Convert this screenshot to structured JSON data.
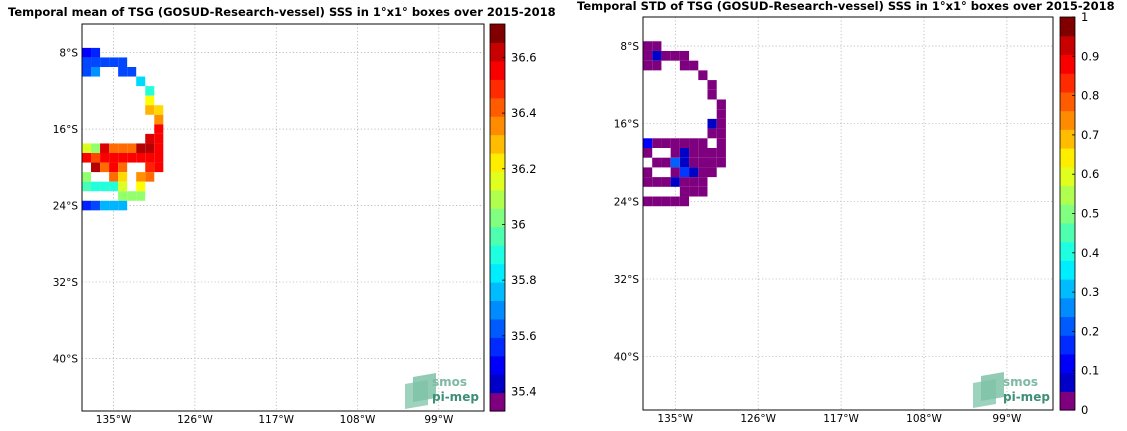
{
  "chart_data": [
    {
      "type": "heatmap",
      "title": "Temporal mean of TSG (GOSUD-Research-vessel) SSS in 1°x1° boxes over 2015-2018",
      "xlabel": "",
      "ylabel": "",
      "xlim": [
        -138.5,
        -94
      ],
      "ylim": [
        -45.5,
        -5
      ],
      "x_ticks": [
        -135,
        -126,
        -117,
        -108,
        -99
      ],
      "x_tick_labels": [
        "135°W",
        "126°W",
        "117°W",
        "108°W",
        "99°W"
      ],
      "y_ticks": [
        -8,
        -16,
        -24,
        -32,
        -40
      ],
      "y_tick_labels": [
        "8°S",
        "16°S",
        "24°S",
        "32°S",
        "40°S"
      ],
      "grid": true,
      "colorbar": {
        "range": [
          35.33,
          36.72
        ],
        "ticks": [
          35.4,
          35.6,
          35.8,
          36,
          36.2,
          36.4,
          36.6
        ],
        "tick_labels": [
          "35.4",
          "35.6",
          "35.8",
          "36",
          "36.2",
          "36.4",
          "36.6"
        ]
      },
      "cells": [
        {
          "lon": -138,
          "lat": -8,
          "value": 35.5
        },
        {
          "lon": -137,
          "lat": -8,
          "value": 35.55
        },
        {
          "lon": -138,
          "lat": -9,
          "value": 35.6
        },
        {
          "lon": -137,
          "lat": -9,
          "value": 35.6
        },
        {
          "lon": -136,
          "lat": -9,
          "value": 35.6
        },
        {
          "lon": -135,
          "lat": -9,
          "value": 35.6
        },
        {
          "lon": -134,
          "lat": -9,
          "value": 35.6
        },
        {
          "lon": -138,
          "lat": -10,
          "value": 35.6
        },
        {
          "lon": -137,
          "lat": -10,
          "value": 35.7
        },
        {
          "lon": -134,
          "lat": -10,
          "value": 35.6
        },
        {
          "lon": -133,
          "lat": -10,
          "value": 35.6
        },
        {
          "lon": -132,
          "lat": -11,
          "value": 35.8
        },
        {
          "lon": -131,
          "lat": -12,
          "value": 35.9
        },
        {
          "lon": -131,
          "lat": -13,
          "value": 36.2
        },
        {
          "lon": -131,
          "lat": -14,
          "value": 36.3
        },
        {
          "lon": -130,
          "lat": -14,
          "value": 36.25
        },
        {
          "lon": -130,
          "lat": -15,
          "value": 36.35
        },
        {
          "lon": -130,
          "lat": -16,
          "value": 36.55
        },
        {
          "lon": -131,
          "lat": -17,
          "value": 36.6
        },
        {
          "lon": -130,
          "lat": -17,
          "value": 36.55
        },
        {
          "lon": -138,
          "lat": -18,
          "value": 36.15
        },
        {
          "lon": -137,
          "lat": -18,
          "value": 36.05
        },
        {
          "lon": -136,
          "lat": -18,
          "value": 36.6
        },
        {
          "lon": -135,
          "lat": -18,
          "value": 36.4
        },
        {
          "lon": -134,
          "lat": -18,
          "value": 36.4
        },
        {
          "lon": -133,
          "lat": -18,
          "value": 36.4
        },
        {
          "lon": -132,
          "lat": -18,
          "value": 36.65
        },
        {
          "lon": -131,
          "lat": -18,
          "value": 36.65
        },
        {
          "lon": -130,
          "lat": -18,
          "value": 36.55
        },
        {
          "lon": -138,
          "lat": -19,
          "value": 36.55
        },
        {
          "lon": -137,
          "lat": -19,
          "value": 36.45
        },
        {
          "lon": -136,
          "lat": -19,
          "value": 36.55
        },
        {
          "lon": -135,
          "lat": -19,
          "value": 36.55
        },
        {
          "lon": -134,
          "lat": -19,
          "value": 36.55
        },
        {
          "lon": -133,
          "lat": -19,
          "value": 36.55
        },
        {
          "lon": -132,
          "lat": -19,
          "value": 36.55
        },
        {
          "lon": -131,
          "lat": -19,
          "value": 36.55
        },
        {
          "lon": -130,
          "lat": -19,
          "value": 36.55
        },
        {
          "lon": -137,
          "lat": -20,
          "value": 36.65
        },
        {
          "lon": -136,
          "lat": -20,
          "value": 36.4
        },
        {
          "lon": -135,
          "lat": -20,
          "value": 36.55
        },
        {
          "lon": -134,
          "lat": -20,
          "value": 36.4
        },
        {
          "lon": -131,
          "lat": -20,
          "value": 36.5
        },
        {
          "lon": -130,
          "lat": -20,
          "value": 36.55
        },
        {
          "lon": -138,
          "lat": -21,
          "value": 36.05
        },
        {
          "lon": -135,
          "lat": -21,
          "value": 36.4
        },
        {
          "lon": -134,
          "lat": -21,
          "value": 36.25
        },
        {
          "lon": -132,
          "lat": -21,
          "value": 36.35
        },
        {
          "lon": -131,
          "lat": -21,
          "value": 36.4
        },
        {
          "lon": -138,
          "lat": -22,
          "value": 35.95
        },
        {
          "lon": -137,
          "lat": -22,
          "value": 35.9
        },
        {
          "lon": -136,
          "lat": -22,
          "value": 35.9
        },
        {
          "lon": -135,
          "lat": -22,
          "value": 35.9
        },
        {
          "lon": -134,
          "lat": -22,
          "value": 36.15
        },
        {
          "lon": -132,
          "lat": -22,
          "value": 36.2
        },
        {
          "lon": -134,
          "lat": -23,
          "value": 36.05
        },
        {
          "lon": -133,
          "lat": -23,
          "value": 36.05
        },
        {
          "lon": -132,
          "lat": -23,
          "value": 36.05
        },
        {
          "lon": -138,
          "lat": -24,
          "value": 35.55
        },
        {
          "lon": -137,
          "lat": -24,
          "value": 35.6
        },
        {
          "lon": -136,
          "lat": -24,
          "value": 35.75
        },
        {
          "lon": -135,
          "lat": -24,
          "value": 35.75
        },
        {
          "lon": -134,
          "lat": -24,
          "value": 35.75
        }
      ]
    },
    {
      "type": "heatmap",
      "title": "Temporal STD of TSG (GOSUD-Research-vessel) SSS in 1°x1° boxes over 2015-2018",
      "xlabel": "",
      "ylabel": "",
      "xlim": [
        -138.5,
        -94
      ],
      "ylim": [
        -45.5,
        -5
      ],
      "x_ticks": [
        -135,
        -126,
        -117,
        -108,
        -99
      ],
      "x_tick_labels": [
        "135°W",
        "126°W",
        "117°W",
        "108°W",
        "99°W"
      ],
      "y_ticks": [
        -8,
        -16,
        -24,
        -32,
        -40
      ],
      "y_tick_labels": [
        "8°S",
        "16°S",
        "24°S",
        "32°S",
        "40°S"
      ],
      "grid": true,
      "colorbar": {
        "range": [
          0,
          1
        ],
        "ticks": [
          0,
          0.1,
          0.2,
          0.3,
          0.4,
          0.5,
          0.6,
          0.7,
          0.8,
          0.9,
          1
        ],
        "tick_labels": [
          "0",
          "0.1",
          "0.2",
          "0.3",
          "0.4",
          "0.5",
          "0.6",
          "0.7",
          "0.8",
          "0.9",
          "1"
        ]
      },
      "cells": [
        {
          "lon": -138,
          "lat": -8,
          "value": 0.05
        },
        {
          "lon": -137,
          "lat": -8,
          "value": 0.05
        },
        {
          "lon": -138,
          "lat": -9,
          "value": 0.05
        },
        {
          "lon": -137,
          "lat": -9,
          "value": 0.07
        },
        {
          "lon": -136,
          "lat": -9,
          "value": 0.05
        },
        {
          "lon": -135,
          "lat": -9,
          "value": 0.05
        },
        {
          "lon": -134,
          "lat": -9,
          "value": 0.05
        },
        {
          "lon": -138,
          "lat": -10,
          "value": 0.05
        },
        {
          "lon": -137,
          "lat": -10,
          "value": 0.05
        },
        {
          "lon": -134,
          "lat": -10,
          "value": 0.05
        },
        {
          "lon": -133,
          "lat": -10,
          "value": 0.05
        },
        {
          "lon": -132,
          "lat": -11,
          "value": 0.05
        },
        {
          "lon": -131,
          "lat": -12,
          "value": 0.05
        },
        {
          "lon": -131,
          "lat": -13,
          "value": 0.05
        },
        {
          "lon": -130,
          "lat": -14,
          "value": 0.05
        },
        {
          "lon": -130,
          "lat": -15,
          "value": 0.05
        },
        {
          "lon": -131,
          "lat": -16,
          "value": 0.07
        },
        {
          "lon": -130,
          "lat": -16,
          "value": 0.05
        },
        {
          "lon": -131,
          "lat": -17,
          "value": 0.05
        },
        {
          "lon": -130,
          "lat": -17,
          "value": 0.05
        },
        {
          "lon": -138,
          "lat": -18,
          "value": 0.12
        },
        {
          "lon": -137,
          "lat": -18,
          "value": 0.05
        },
        {
          "lon": -136,
          "lat": -18,
          "value": 0.05
        },
        {
          "lon": -135,
          "lat": -18,
          "value": 0.05
        },
        {
          "lon": -134,
          "lat": -18,
          "value": 0.05
        },
        {
          "lon": -133,
          "lat": -18,
          "value": 0.05
        },
        {
          "lon": -132,
          "lat": -18,
          "value": 0.05
        },
        {
          "lon": -130,
          "lat": -18,
          "value": 0.05
        },
        {
          "lon": -138,
          "lat": -19,
          "value": 0.05
        },
        {
          "lon": -135,
          "lat": -19,
          "value": 0.05
        },
        {
          "lon": -134,
          "lat": -19,
          "value": 0.07
        },
        {
          "lon": -133,
          "lat": -19,
          "value": 0.05
        },
        {
          "lon": -132,
          "lat": -19,
          "value": 0.05
        },
        {
          "lon": -131,
          "lat": -19,
          "value": 0.05
        },
        {
          "lon": -130,
          "lat": -19,
          "value": 0.05
        },
        {
          "lon": -137,
          "lat": -20,
          "value": 0.05
        },
        {
          "lon": -136,
          "lat": -20,
          "value": 0.05
        },
        {
          "lon": -135,
          "lat": -20,
          "value": 0.22
        },
        {
          "lon": -134,
          "lat": -20,
          "value": 0.07
        },
        {
          "lon": -133,
          "lat": -20,
          "value": 0.05
        },
        {
          "lon": -132,
          "lat": -20,
          "value": 0.05
        },
        {
          "lon": -131,
          "lat": -20,
          "value": 0.05
        },
        {
          "lon": -130,
          "lat": -20,
          "value": 0.05
        },
        {
          "lon": -138,
          "lat": -21,
          "value": 0.05
        },
        {
          "lon": -135,
          "lat": -21,
          "value": 0.05
        },
        {
          "lon": -134,
          "lat": -21,
          "value": 0.18
        },
        {
          "lon": -133,
          "lat": -21,
          "value": 0.07
        },
        {
          "lon": -132,
          "lat": -21,
          "value": 0.05
        },
        {
          "lon": -131,
          "lat": -21,
          "value": 0.05
        },
        {
          "lon": -138,
          "lat": -22,
          "value": 0.05
        },
        {
          "lon": -137,
          "lat": -22,
          "value": 0.05
        },
        {
          "lon": -136,
          "lat": -22,
          "value": 0.05
        },
        {
          "lon": -135,
          "lat": -22,
          "value": 0.07
        },
        {
          "lon": -134,
          "lat": -22,
          "value": 0.05
        },
        {
          "lon": -133,
          "lat": -22,
          "value": 0.05
        },
        {
          "lon": -132,
          "lat": -22,
          "value": 0.05
        },
        {
          "lon": -134,
          "lat": -23,
          "value": 0.05
        },
        {
          "lon": -133,
          "lat": -23,
          "value": 0.05
        },
        {
          "lon": -132,
          "lat": -23,
          "value": 0.05
        },
        {
          "lon": -138,
          "lat": -24,
          "value": 0.05
        },
        {
          "lon": -137,
          "lat": -24,
          "value": 0.05
        },
        {
          "lon": -136,
          "lat": -24,
          "value": 0.05
        },
        {
          "lon": -135,
          "lat": -24,
          "value": 0.05
        },
        {
          "lon": -134,
          "lat": -24,
          "value": 0.05
        }
      ]
    }
  ],
  "watermark": {
    "line1": "smos",
    "line2": "pi-mep"
  },
  "colors": {
    "jet_low": "#7f007f",
    "jet_high": "#800000",
    "grid": "#999999"
  }
}
